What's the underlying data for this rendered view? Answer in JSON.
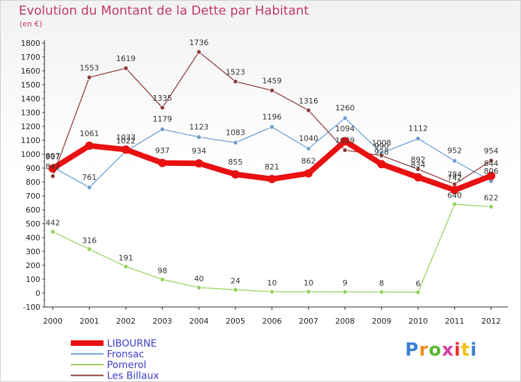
{
  "title": "Evolution du Montant de la Dette par Habitant",
  "unit": "(en €)",
  "logo": "Proxiti",
  "colors": {
    "title": "#c0396b",
    "LIBOURNE": "#e81010",
    "Fronsac": "#6a9ccf",
    "Pomerol": "#95d35b",
    "Les Billaux": "#8b3b3b"
  },
  "chart_data": {
    "type": "line",
    "title": "Evolution du Montant de la Dette par Habitant",
    "ylabel": "(en €)",
    "xlabel": "",
    "x": [
      "2000",
      "2001",
      "2002",
      "2003",
      "2004",
      "2005",
      "2006",
      "2007",
      "2008",
      "2009",
      "2010",
      "2011",
      "2012"
    ],
    "ylim": [
      -100,
      1800
    ],
    "yticks": [
      -100,
      0,
      100,
      200,
      300,
      400,
      500,
      600,
      700,
      800,
      900,
      1000,
      1100,
      1200,
      1300,
      1400,
      1500,
      1600,
      1700,
      1800
    ],
    "grid": false,
    "legend_position": "bottom-left",
    "series": [
      {
        "name": "LIBOURNE",
        "values": [
          897,
          1061,
          1033,
          937,
          934,
          855,
          821,
          862,
          1094,
          928,
          834,
          742,
          844
        ]
      },
      {
        "name": "Fronsac",
        "values": [
          907,
          761,
          1022,
          1179,
          1123,
          1083,
          1196,
          1040,
          1260,
          1008,
          1112,
          952,
          806
        ]
      },
      {
        "name": "Pomerol",
        "values": [
          442,
          316,
          191,
          98,
          40,
          24,
          10,
          10,
          9,
          8,
          6,
          640,
          622
        ]
      },
      {
        "name": "Les Billaux",
        "values": [
          842,
          1553,
          1619,
          1335,
          1736,
          1523,
          1459,
          1316,
          1029,
          990,
          892,
          784,
          954
        ]
      }
    ]
  }
}
